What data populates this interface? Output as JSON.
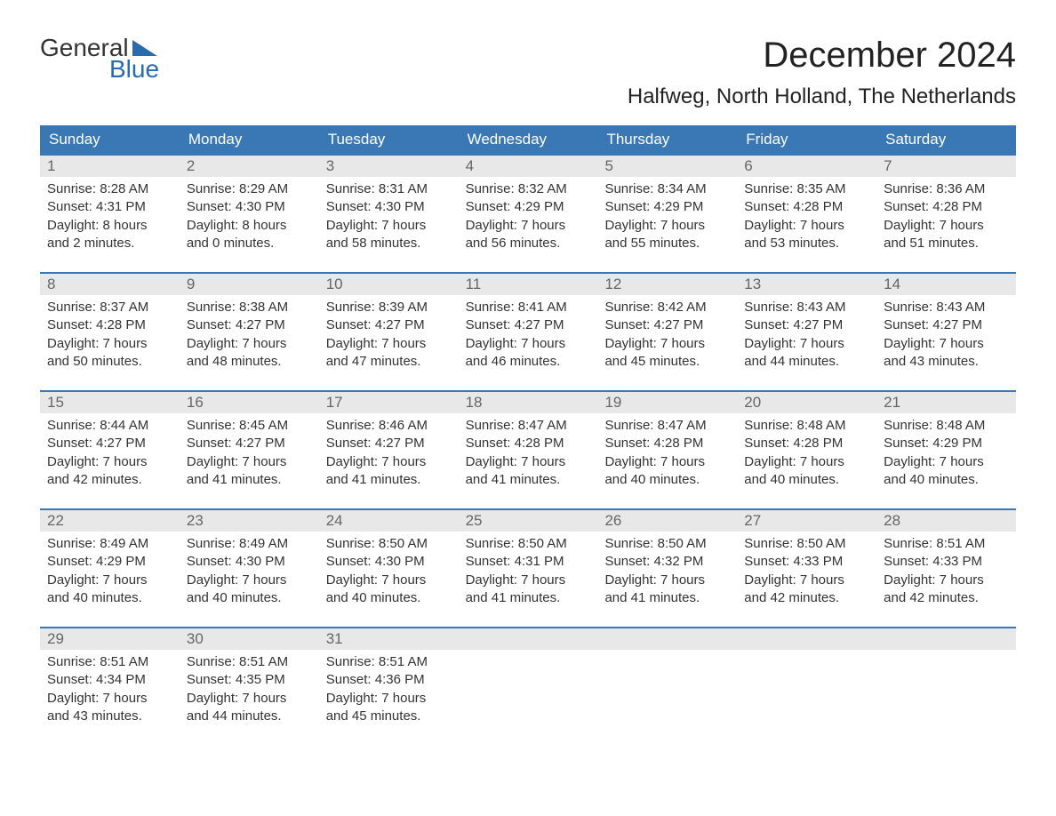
{
  "logo": {
    "text1": "General",
    "text2": "Blue",
    "icon_color": "#2a6bb0"
  },
  "title": "December 2024",
  "location": "Halfweg, North Holland, The Netherlands",
  "colors": {
    "header_bg": "#3a78b5",
    "header_text": "#ffffff",
    "daynum_bg": "#e8e8e8",
    "daynum_text": "#666666",
    "body_text": "#333333",
    "rule": "#3a78b5"
  },
  "weekdays": [
    "Sunday",
    "Monday",
    "Tuesday",
    "Wednesday",
    "Thursday",
    "Friday",
    "Saturday"
  ],
  "weeks": [
    [
      {
        "n": "1",
        "sunrise": "Sunrise: 8:28 AM",
        "sunset": "Sunset: 4:31 PM",
        "daylight1": "Daylight: 8 hours",
        "daylight2": "and 2 minutes."
      },
      {
        "n": "2",
        "sunrise": "Sunrise: 8:29 AM",
        "sunset": "Sunset: 4:30 PM",
        "daylight1": "Daylight: 8 hours",
        "daylight2": "and 0 minutes."
      },
      {
        "n": "3",
        "sunrise": "Sunrise: 8:31 AM",
        "sunset": "Sunset: 4:30 PM",
        "daylight1": "Daylight: 7 hours",
        "daylight2": "and 58 minutes."
      },
      {
        "n": "4",
        "sunrise": "Sunrise: 8:32 AM",
        "sunset": "Sunset: 4:29 PM",
        "daylight1": "Daylight: 7 hours",
        "daylight2": "and 56 minutes."
      },
      {
        "n": "5",
        "sunrise": "Sunrise: 8:34 AM",
        "sunset": "Sunset: 4:29 PM",
        "daylight1": "Daylight: 7 hours",
        "daylight2": "and 55 minutes."
      },
      {
        "n": "6",
        "sunrise": "Sunrise: 8:35 AM",
        "sunset": "Sunset: 4:28 PM",
        "daylight1": "Daylight: 7 hours",
        "daylight2": "and 53 minutes."
      },
      {
        "n": "7",
        "sunrise": "Sunrise: 8:36 AM",
        "sunset": "Sunset: 4:28 PM",
        "daylight1": "Daylight: 7 hours",
        "daylight2": "and 51 minutes."
      }
    ],
    [
      {
        "n": "8",
        "sunrise": "Sunrise: 8:37 AM",
        "sunset": "Sunset: 4:28 PM",
        "daylight1": "Daylight: 7 hours",
        "daylight2": "and 50 minutes."
      },
      {
        "n": "9",
        "sunrise": "Sunrise: 8:38 AM",
        "sunset": "Sunset: 4:27 PM",
        "daylight1": "Daylight: 7 hours",
        "daylight2": "and 48 minutes."
      },
      {
        "n": "10",
        "sunrise": "Sunrise: 8:39 AM",
        "sunset": "Sunset: 4:27 PM",
        "daylight1": "Daylight: 7 hours",
        "daylight2": "and 47 minutes."
      },
      {
        "n": "11",
        "sunrise": "Sunrise: 8:41 AM",
        "sunset": "Sunset: 4:27 PM",
        "daylight1": "Daylight: 7 hours",
        "daylight2": "and 46 minutes."
      },
      {
        "n": "12",
        "sunrise": "Sunrise: 8:42 AM",
        "sunset": "Sunset: 4:27 PM",
        "daylight1": "Daylight: 7 hours",
        "daylight2": "and 45 minutes."
      },
      {
        "n": "13",
        "sunrise": "Sunrise: 8:43 AM",
        "sunset": "Sunset: 4:27 PM",
        "daylight1": "Daylight: 7 hours",
        "daylight2": "and 44 minutes."
      },
      {
        "n": "14",
        "sunrise": "Sunrise: 8:43 AM",
        "sunset": "Sunset: 4:27 PM",
        "daylight1": "Daylight: 7 hours",
        "daylight2": "and 43 minutes."
      }
    ],
    [
      {
        "n": "15",
        "sunrise": "Sunrise: 8:44 AM",
        "sunset": "Sunset: 4:27 PM",
        "daylight1": "Daylight: 7 hours",
        "daylight2": "and 42 minutes."
      },
      {
        "n": "16",
        "sunrise": "Sunrise: 8:45 AM",
        "sunset": "Sunset: 4:27 PM",
        "daylight1": "Daylight: 7 hours",
        "daylight2": "and 41 minutes."
      },
      {
        "n": "17",
        "sunrise": "Sunrise: 8:46 AM",
        "sunset": "Sunset: 4:27 PM",
        "daylight1": "Daylight: 7 hours",
        "daylight2": "and 41 minutes."
      },
      {
        "n": "18",
        "sunrise": "Sunrise: 8:47 AM",
        "sunset": "Sunset: 4:28 PM",
        "daylight1": "Daylight: 7 hours",
        "daylight2": "and 41 minutes."
      },
      {
        "n": "19",
        "sunrise": "Sunrise: 8:47 AM",
        "sunset": "Sunset: 4:28 PM",
        "daylight1": "Daylight: 7 hours",
        "daylight2": "and 40 minutes."
      },
      {
        "n": "20",
        "sunrise": "Sunrise: 8:48 AM",
        "sunset": "Sunset: 4:28 PM",
        "daylight1": "Daylight: 7 hours",
        "daylight2": "and 40 minutes."
      },
      {
        "n": "21",
        "sunrise": "Sunrise: 8:48 AM",
        "sunset": "Sunset: 4:29 PM",
        "daylight1": "Daylight: 7 hours",
        "daylight2": "and 40 minutes."
      }
    ],
    [
      {
        "n": "22",
        "sunrise": "Sunrise: 8:49 AM",
        "sunset": "Sunset: 4:29 PM",
        "daylight1": "Daylight: 7 hours",
        "daylight2": "and 40 minutes."
      },
      {
        "n": "23",
        "sunrise": "Sunrise: 8:49 AM",
        "sunset": "Sunset: 4:30 PM",
        "daylight1": "Daylight: 7 hours",
        "daylight2": "and 40 minutes."
      },
      {
        "n": "24",
        "sunrise": "Sunrise: 8:50 AM",
        "sunset": "Sunset: 4:30 PM",
        "daylight1": "Daylight: 7 hours",
        "daylight2": "and 40 minutes."
      },
      {
        "n": "25",
        "sunrise": "Sunrise: 8:50 AM",
        "sunset": "Sunset: 4:31 PM",
        "daylight1": "Daylight: 7 hours",
        "daylight2": "and 41 minutes."
      },
      {
        "n": "26",
        "sunrise": "Sunrise: 8:50 AM",
        "sunset": "Sunset: 4:32 PM",
        "daylight1": "Daylight: 7 hours",
        "daylight2": "and 41 minutes."
      },
      {
        "n": "27",
        "sunrise": "Sunrise: 8:50 AM",
        "sunset": "Sunset: 4:33 PM",
        "daylight1": "Daylight: 7 hours",
        "daylight2": "and 42 minutes."
      },
      {
        "n": "28",
        "sunrise": "Sunrise: 8:51 AM",
        "sunset": "Sunset: 4:33 PM",
        "daylight1": "Daylight: 7 hours",
        "daylight2": "and 42 minutes."
      }
    ],
    [
      {
        "n": "29",
        "sunrise": "Sunrise: 8:51 AM",
        "sunset": "Sunset: 4:34 PM",
        "daylight1": "Daylight: 7 hours",
        "daylight2": "and 43 minutes."
      },
      {
        "n": "30",
        "sunrise": "Sunrise: 8:51 AM",
        "sunset": "Sunset: 4:35 PM",
        "daylight1": "Daylight: 7 hours",
        "daylight2": "and 44 minutes."
      },
      {
        "n": "31",
        "sunrise": "Sunrise: 8:51 AM",
        "sunset": "Sunset: 4:36 PM",
        "daylight1": "Daylight: 7 hours",
        "daylight2": "and 45 minutes."
      },
      {
        "empty": true
      },
      {
        "empty": true
      },
      {
        "empty": true
      },
      {
        "empty": true
      }
    ]
  ]
}
